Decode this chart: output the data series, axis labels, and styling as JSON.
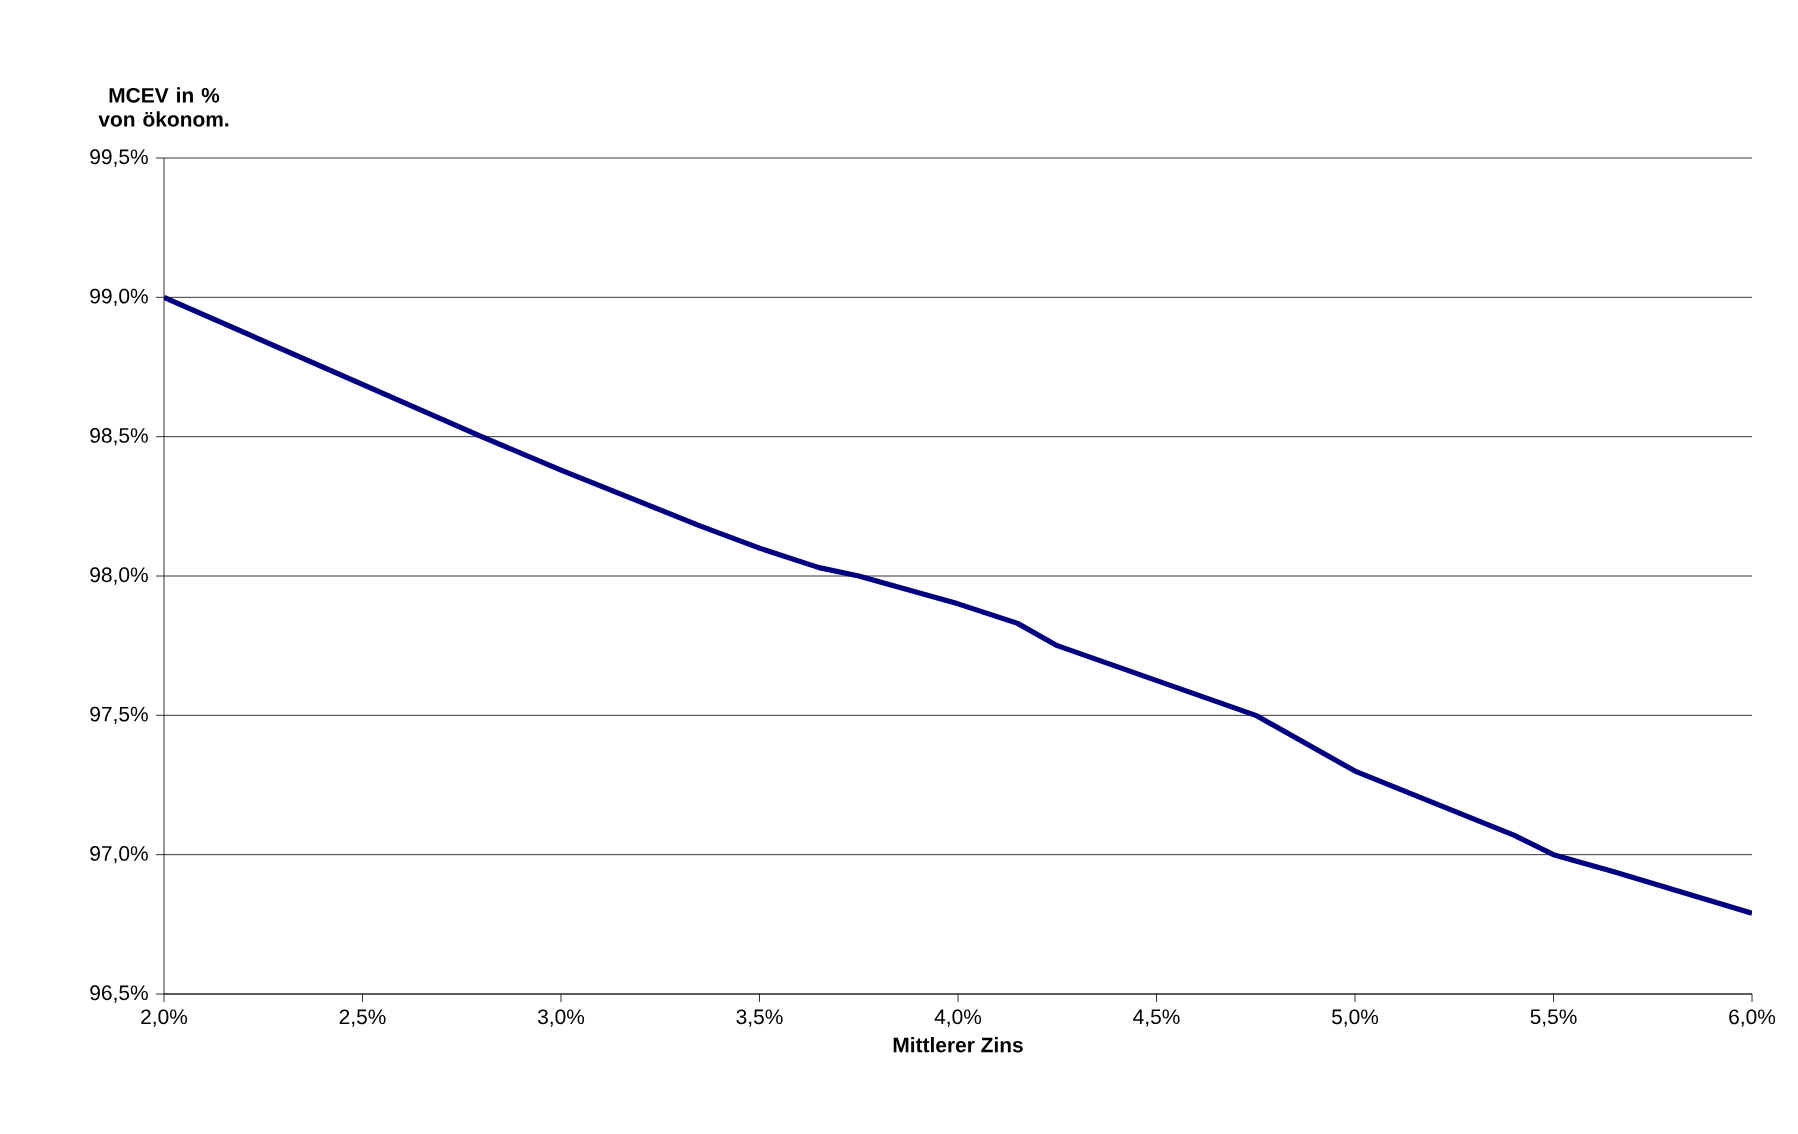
{
  "chart_data": {
    "type": "line",
    "xlabel": "Mittlerer Zins",
    "ylabel": "MCEV in % von ökonom.",
    "x": [
      2.0,
      2.8,
      3.0,
      3.35,
      3.5,
      3.65,
      3.75,
      4.0,
      4.15,
      4.25,
      4.75,
      5.0,
      5.4,
      5.5,
      5.65,
      6.0
    ],
    "series": [
      {
        "color": "#000080",
        "values": [
          99.0,
          98.5,
          98.38,
          98.18,
          98.1,
          98.03,
          98.0,
          97.9,
          97.83,
          97.75,
          97.5,
          97.3,
          97.07,
          97.0,
          96.94,
          96.79
        ]
      }
    ],
    "xlim": [
      2.0,
      6.0
    ],
    "ylim": [
      96.5,
      99.5
    ],
    "xticks": [
      {
        "value": 2.0,
        "label": "2,0%"
      },
      {
        "value": 2.5,
        "label": "2,5%"
      },
      {
        "value": 3.0,
        "label": "3,0%"
      },
      {
        "value": 3.5,
        "label": "3,5%"
      },
      {
        "value": 4.0,
        "label": "4,0%"
      },
      {
        "value": 4.5,
        "label": "4,5%"
      },
      {
        "value": 5.0,
        "label": "5,0%"
      },
      {
        "value": 5.5,
        "label": "5,5%"
      },
      {
        "value": 6.0,
        "label": "6,0%"
      }
    ],
    "yticks": [
      {
        "value": 96.5,
        "label": "96,5%"
      },
      {
        "value": 97.0,
        "label": "97,0%"
      },
      {
        "value": 97.5,
        "label": "97,5%"
      },
      {
        "value": 98.0,
        "label": "98,0%"
      },
      {
        "value": 98.5,
        "label": "98,5%"
      },
      {
        "value": 99.0,
        "label": "99,0%"
      },
      {
        "value": 99.5,
        "label": "99,5%"
      }
    ],
    "grid": "y",
    "marker": "none",
    "line_style": "solid"
  }
}
